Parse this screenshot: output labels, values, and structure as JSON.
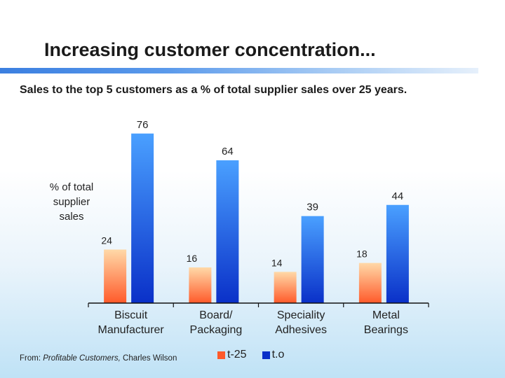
{
  "title": "Increasing customer concentration...",
  "subtitle": "Sales to the top 5 customers as a % of total supplier sales over 25 years.",
  "source": {
    "prefix": "From: ",
    "book": "Profitable Customers,",
    "author": " Charles Wilson"
  },
  "colors": {
    "t25_top": "#ffd9a8",
    "t25_bottom": "#ff5a2a",
    "t0_top": "#4aa0ff",
    "t0_bottom": "#0a30c8",
    "title_rule": "#3b7fe0"
  },
  "chart_data": {
    "type": "bar",
    "title": "",
    "xlabel": "",
    "ylabel": "% of total\nsupplier\nsales",
    "ylim": [
      0,
      80
    ],
    "categories": [
      "Biscuit\nManufacturer",
      "Board/\nPackaging",
      "Speciality\nAdhesives",
      "Metal\nBearings"
    ],
    "series": [
      {
        "name": "t-25",
        "values": [
          24,
          16,
          14,
          18
        ]
      },
      {
        "name": "t.o",
        "values": [
          76,
          64,
          39,
          44
        ]
      }
    ],
    "grid": false,
    "legend": "bottom"
  }
}
